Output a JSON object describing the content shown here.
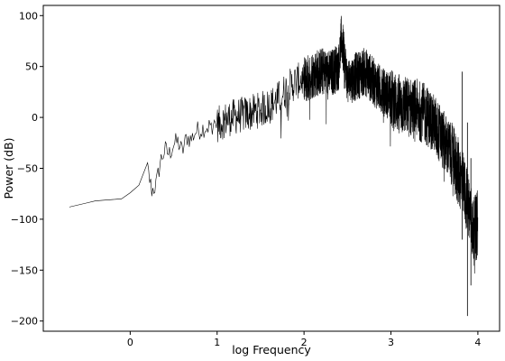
{
  "chart_data": {
    "type": "line",
    "title": "",
    "xlabel": "log Frequency",
    "ylabel": "Power (dB)",
    "xlim": [
      -1.0,
      4.25
    ],
    "ylim": [
      -210,
      110
    ],
    "xticks": [
      0,
      1,
      2,
      3,
      4
    ],
    "xtick_labels": [
      "0",
      "1",
      "2",
      "3",
      "4"
    ],
    "yticks": [
      100,
      50,
      0,
      -50,
      -100,
      -150,
      -200
    ],
    "ytick_labels": [
      "100",
      "50",
      "0",
      "−50",
      "−100",
      "−150",
      "−200"
    ],
    "grid": false,
    "legend": "none",
    "line_color": "#000000",
    "series": [
      {
        "x": [
          -0.7,
          -0.4,
          -0.1,
          0.0,
          0.08,
          0.15,
          0.2,
          0.25,
          0.3,
          0.35,
          0.4,
          0.45,
          0.5,
          0.55,
          0.6,
          0.65,
          0.7,
          0.75,
          0.8,
          0.85,
          0.9,
          0.95,
          1.0,
          1.1,
          1.2,
          1.3,
          1.4,
          1.5,
          1.6,
          1.7,
          1.8,
          1.9,
          2.0,
          2.1,
          2.2,
          2.3,
          2.4,
          2.43,
          2.5,
          2.6,
          2.7,
          2.8,
          2.9,
          3.0,
          3.1,
          3.2,
          3.3,
          3.4,
          3.5,
          3.6,
          3.7,
          3.8,
          3.9,
          3.95,
          4.0
        ],
        "y": [
          -88,
          -82,
          -80,
          -74,
          -66,
          -68,
          -47,
          -68,
          -62,
          -38,
          -28,
          -32,
          -22,
          -20,
          -30,
          -15,
          -18,
          -10,
          -8,
          -6,
          -5,
          -3,
          0,
          5,
          8,
          10,
          12,
          15,
          18,
          25,
          35,
          42,
          45,
          52,
          55,
          52,
          60,
          88,
          45,
          50,
          55,
          45,
          35,
          30,
          25,
          22,
          20,
          15,
          5,
          -10,
          -25,
          -45,
          -75,
          -100,
          -90
        ]
      }
    ]
  }
}
